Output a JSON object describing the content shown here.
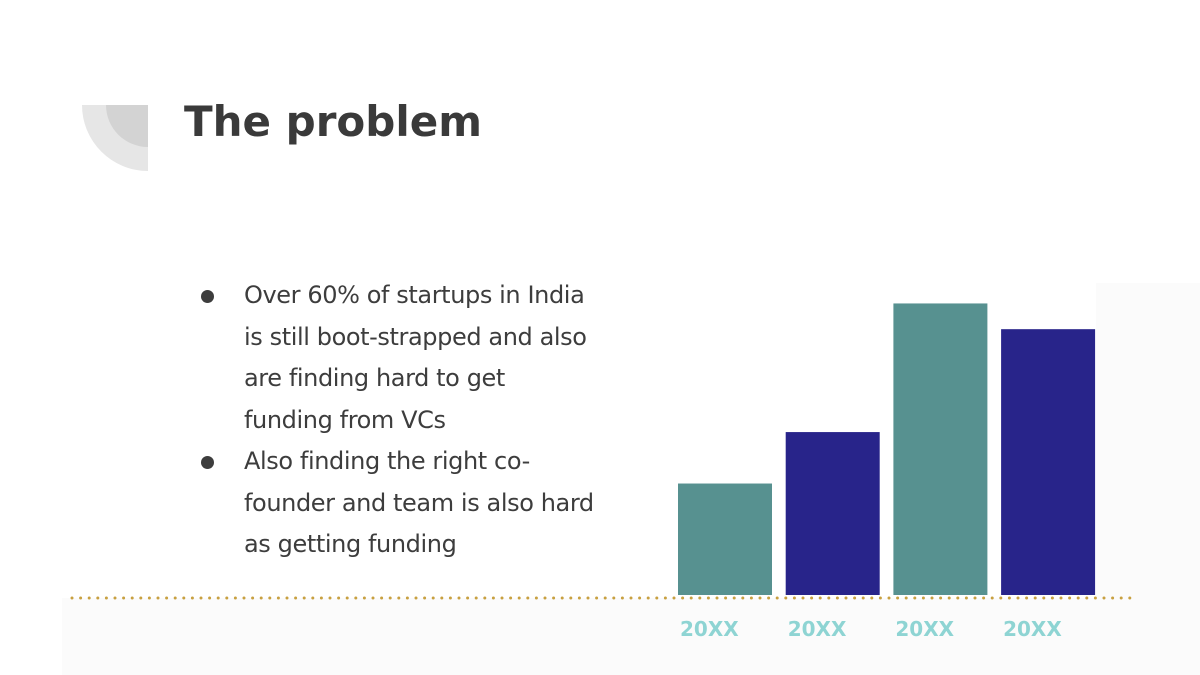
{
  "slide": {
    "title": "The problem",
    "bullets": [
      "Over 60% of startups in India is still boot-strapped and also are finding hard to get funding from VCs",
      "Also finding the right co-founder and team is also hard as getting funding"
    ]
  },
  "colors": {
    "teal": "#579190",
    "navy": "#28248a",
    "axis_dots": "#c8a040",
    "tick_label": "#8ed4d3",
    "title": "#3a3a3a"
  },
  "chart_data": {
    "type": "bar",
    "categories": [
      "20XX",
      "20XX",
      "20XX",
      "20XX"
    ],
    "values": [
      13,
      19,
      34,
      31
    ],
    "bar_colors": [
      "#579190",
      "#28248a",
      "#579190",
      "#28248a"
    ],
    "ylim": [
      0,
      40
    ],
    "grid": false,
    "legend": "none",
    "title": "",
    "xlabel": "",
    "ylabel": ""
  }
}
